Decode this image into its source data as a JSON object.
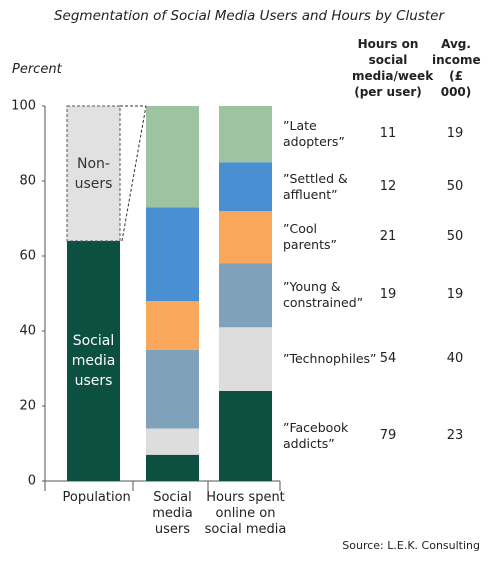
{
  "chart_data": {
    "type": "stacked_bar",
    "title": "Segmentation of Social Media Users and Hours by Cluster",
    "y_label": "Percent",
    "categories": [
      "Population",
      "Social media users",
      "Hours spent online on social media"
    ],
    "ylim": [
      0,
      100
    ],
    "yticks": [
      0,
      20,
      40,
      60,
      80,
      100
    ],
    "columns": [
      "Hours on social media/week (per user)",
      "Avg. income (£ 000)"
    ],
    "series": [
      {
        "name": "Social media users",
        "color": "#0b5040",
        "text_color": "#ffffff",
        "values": [
          64,
          null,
          null
        ]
      },
      {
        "name": "Non-users",
        "color": "#e1e1e1",
        "text_color": "#333333",
        "style": "dashed",
        "values": [
          36,
          null,
          null
        ]
      },
      {
        "name": "”Facebook addicts”",
        "color": "#0b5040",
        "values": [
          null,
          7,
          24
        ],
        "hours": 79,
        "income": 23
      },
      {
        "name": "”Technophiles”",
        "color": "#dddddd",
        "values": [
          null,
          7,
          17
        ],
        "hours": 54,
        "income": 40
      },
      {
        "name": "”Young & constrained”",
        "color": "#7fa2ba",
        "values": [
          null,
          21,
          17
        ],
        "hours": 19,
        "income": 19
      },
      {
        "name": "”Cool parents”",
        "color": "#f9a85b",
        "values": [
          null,
          13,
          14
        ],
        "hours": 21,
        "income": 50
      },
      {
        "name": "”Settled & affluent”",
        "color": "#4a8fd2",
        "values": [
          null,
          25,
          13
        ],
        "hours": 12,
        "income": 50
      },
      {
        "name": "”Late adopters”",
        "color": "#9ec49f",
        "values": [
          null,
          27,
          15
        ],
        "hours": 11,
        "income": 19
      }
    ],
    "source": "Source:  L.E.K. Consulting"
  }
}
